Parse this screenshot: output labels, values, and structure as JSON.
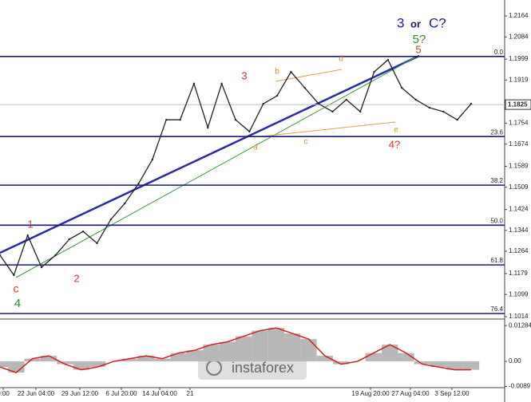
{
  "chart_data": {
    "type": "line",
    "title_parts": [
      {
        "text": "3",
        "color": "#1a1aa0"
      },
      {
        "text": "or",
        "color": "#1a1a6a"
      },
      {
        "text": "C?",
        "color": "#1a1aa0"
      }
    ],
    "values": [
      1.1249,
      1.1173,
      1.1325,
      1.1203,
      1.1249,
      1.131,
      1.134,
      1.1295,
      1.1386,
      1.1447,
      1.1523,
      1.1615,
      1.1767,
      1.1767,
      1.1905,
      1.1737,
      1.1905,
      1.1767,
      1.1722,
      1.1828,
      1.1859,
      1.195,
      1.1889,
      1.1828,
      1.1798,
      1.1844,
      1.1798,
      1.195,
      1.1996,
      1.1889,
      1.1844,
      1.1813,
      1.1798,
      1.1767,
      1.1828
    ],
    "color": "#222222",
    "ylim": [
      1.1005,
      1.2225
    ],
    "yticks": [
      1.2164,
      1.2084,
      1.1999,
      1.1919,
      1.1754,
      1.1674,
      1.1589,
      1.1509,
      1.1424,
      1.1344,
      1.1264,
      1.1179,
      1.1099,
      1.1014
    ],
    "current_price": 1.1825,
    "fib_levels": [
      {
        "value": 1.2009,
        "label": "0.0"
      },
      {
        "value": 1.1703,
        "label": "23.6"
      },
      {
        "value": 1.1517,
        "label": "38.2"
      },
      {
        "value": 1.1364,
        "label": "50.0"
      },
      {
        "value": 1.1212,
        "label": "61.8"
      },
      {
        "value": 1.1026,
        "label": "76.4"
      }
    ],
    "fib_color": "#1a1a7a",
    "annotations": [
      {
        "text": "5?",
        "color": "#2e8b2e"
      },
      {
        "text": "5",
        "color": "#d0332a"
      },
      {
        "text": "3",
        "color": "#d0332a"
      },
      {
        "text": "1",
        "color": "#d0332a"
      },
      {
        "text": "2",
        "color": "#d0332a"
      },
      {
        "text": "c",
        "color": "#d0332a"
      },
      {
        "text": "4",
        "color": "#2e8b2e"
      },
      {
        "text": "4?",
        "color": "#d0332a"
      },
      {
        "text": "a",
        "color": "#e0902a"
      },
      {
        "text": "b",
        "color": "#e0902a"
      },
      {
        "text": "c",
        "color": "#e0902a"
      },
      {
        "text": "d",
        "color": "#e0902a"
      },
      {
        "text": "e",
        "color": "#e0902a"
      }
    ],
    "xtick_labels": [
      "0:00",
      "22 Jun 04:00",
      "29 Jun 12:00",
      "6 Jul 20:00",
      "14 Jul 04:00",
      "21",
      "19 Aug 20:00",
      "27 Aug 04:00",
      "3 Sep 12:00"
    ],
    "logo": "instaforex",
    "oscillator": {
      "values": [
        -0.002,
        -0.004,
        0.001,
        0.002,
        -0.001,
        -0.003,
        -0.002,
        0.0,
        0.001,
        0.002,
        0.001,
        0.003,
        0.004,
        0.006,
        0.007,
        0.009,
        0.011,
        0.012,
        0.01,
        0.008,
        0.002,
        -0.001,
        0.0,
        0.003,
        0.006,
        0.003,
        -0.001,
        -0.002,
        -0.003,
        -0.003
      ],
      "ylim": [
        -0.0094,
        0.0146
      ],
      "yticks": [
        0.01284,
        {
          "value": 0,
          "label": "0.00"
        },
        -0.00897
      ],
      "color": "#d02020",
      "fill": "#b8b8b8"
    }
  }
}
